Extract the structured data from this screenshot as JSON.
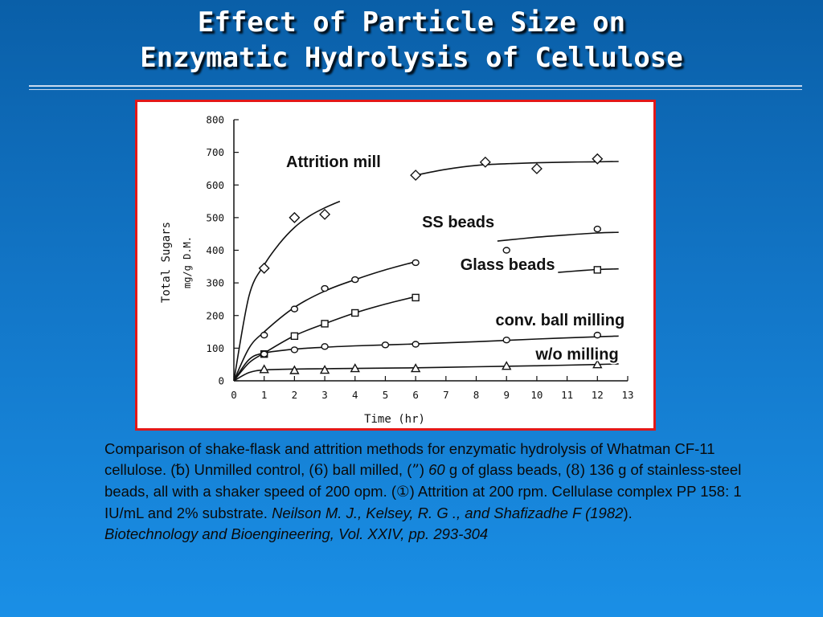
{
  "slide": {
    "title_line1": "Effect of Particle Size on",
    "title_line2": "Enzymatic Hydrolysis of Cellulose"
  },
  "caption": {
    "p1": "Comparison of shake-flask and attrition methods for enzymatic hydrolysis of Whatman CF-11 cellulose. (",
    "sym1": "␢",
    "p2": ") Unmilled control, (",
    "sym2": "6",
    "p3": ") ball milled, (",
    "sym3": "”",
    "p4": ") ",
    "p4i": "60",
    "p5": " g of glass beads, (",
    "sym4": "8",
    "p6": ") 136 g of stainless-steel beads, all with a shaker speed of 200 opm. (",
    "sym5": "①",
    "p7": ") Attrition at 200 rpm. Cellulase complex PP 158: 1 IU/mL and 2% substrate. ",
    "citation_a": "Neilson M. J., Kelsey, R. G ., and Shafizadhe F (1982",
    "citation_b": ").",
    "citation_c": "Biotechnology and Bioengineering, Vol. XXIV, pp. 293-304"
  },
  "chart_data": {
    "type": "scatter",
    "xlabel": "Time (hr)",
    "ylabel": "Total Sugars",
    "ylabel2": "mg/g D.M.",
    "xlim": [
      0,
      13
    ],
    "ylim": [
      0,
      800
    ],
    "xticks": [
      0,
      1,
      2,
      3,
      4,
      5,
      6,
      7,
      8,
      9,
      10,
      11,
      12,
      13
    ],
    "yticks": [
      0,
      100,
      200,
      300,
      400,
      500,
      600,
      700,
      800
    ],
    "ytick_labels": [
      "0",
      "100",
      "200",
      "300",
      "400",
      "500",
      "600",
      "700",
      "800"
    ],
    "series": [
      {
        "name": "Attrition mill",
        "marker": "diamond",
        "x": [
          1,
          2,
          3,
          6,
          8.3,
          10,
          12
        ],
        "y": [
          345,
          500,
          510,
          630,
          670,
          650,
          680
        ],
        "curve_x": [
          0,
          0.5,
          1,
          1.5,
          2,
          2.5,
          3,
          3.5
        ],
        "curve_y": [
          0,
          260,
          355,
          420,
          470,
          505,
          530,
          550
        ],
        "curve2_x": [
          6,
          7,
          8,
          9,
          10,
          11,
          12,
          12.7
        ],
        "curve2_y": [
          630,
          648,
          660,
          665,
          668,
          670,
          671,
          672
        ]
      },
      {
        "name": "SS beads",
        "marker": "circle",
        "x": [
          1,
          2,
          3,
          4,
          6,
          9,
          12
        ],
        "y": [
          140,
          220,
          283,
          310,
          362,
          400,
          465
        ],
        "curve_x": [
          0,
          0.5,
          1,
          2,
          3,
          4,
          5,
          6
        ],
        "curve_y": [
          0,
          100,
          150,
          225,
          275,
          310,
          340,
          365
        ],
        "curve2_x": [
          8.7,
          10,
          11,
          12,
          12.7
        ],
        "curve2_y": [
          428,
          440,
          447,
          453,
          455
        ]
      },
      {
        "name": "Glass beads",
        "marker": "square",
        "x": [
          1,
          2,
          3,
          4,
          6,
          12
        ],
        "y": [
          82,
          137,
          175,
          208,
          255,
          340
        ],
        "curve_x": [
          0,
          0.5,
          1,
          2,
          3,
          4,
          5,
          6
        ],
        "curve_y": [
          0,
          55,
          85,
          138,
          175,
          208,
          235,
          258
        ],
        "curve2_x": [
          10.7,
          11.5,
          12,
          12.7
        ],
        "curve2_y": [
          332,
          338,
          341,
          343
        ]
      },
      {
        "name": "conv. ball milling",
        "marker": "circle",
        "x": [
          1,
          2,
          3,
          5,
          6,
          9,
          12
        ],
        "y": [
          82,
          95,
          105,
          110,
          112,
          125,
          140
        ],
        "curve_x": [
          0,
          0.5,
          1,
          2,
          3,
          4,
          5,
          6,
          8,
          10,
          12,
          12.7
        ],
        "curve_y": [
          0,
          65,
          85,
          97,
          103,
          107,
          110,
          113,
          120,
          128,
          135,
          137
        ]
      },
      {
        "name": "w/o milling",
        "marker": "triangle",
        "x": [
          1,
          2,
          3,
          4,
          6,
          9,
          12
        ],
        "y": [
          35,
          32,
          33,
          38,
          38,
          45,
          50
        ],
        "curve_x": [
          0,
          0.5,
          1,
          2,
          3,
          4,
          6,
          8,
          10,
          12,
          12.7
        ],
        "curve_y": [
          0,
          25,
          33,
          36,
          37,
          38,
          40,
          43,
          46,
          50,
          52
        ]
      }
    ]
  }
}
